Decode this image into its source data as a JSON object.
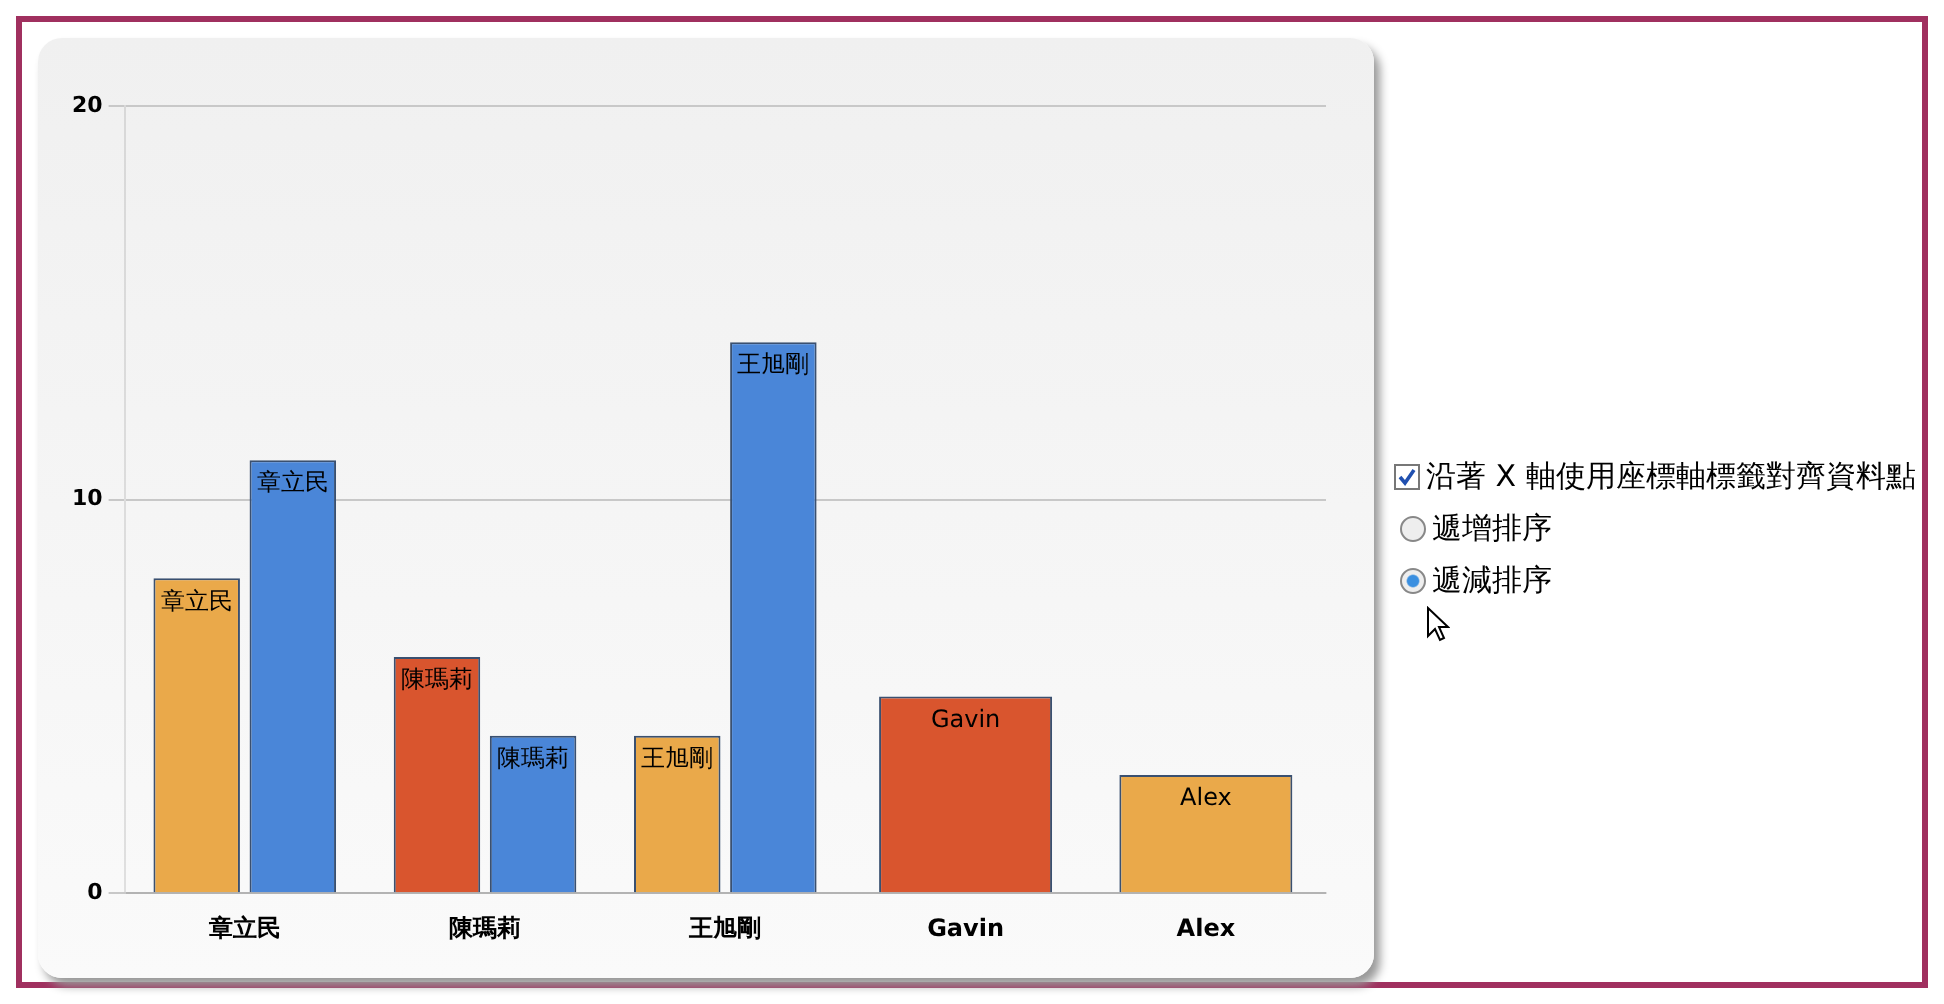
{
  "chart_data": {
    "type": "bar",
    "categories": [
      "章立民",
      "陳瑪莉",
      "王旭剛",
      "Gavin",
      "Alex"
    ],
    "series": [
      {
        "color": "#d9552e",
        "values": [
          null,
          6,
          null,
          5,
          null
        ],
        "value_labels": [
          null,
          "陳瑪莉",
          null,
          "Gavin",
          null
        ]
      },
      {
        "color": "#eaa94a",
        "values": [
          8,
          null,
          4,
          null,
          3
        ],
        "value_labels": [
          "章立民",
          null,
          "王旭剛",
          null,
          "Alex"
        ]
      },
      {
        "color": "#4a86d8",
        "values": [
          11,
          4,
          14,
          null,
          null
        ],
        "value_labels": [
          "章立民",
          "陳瑪莉",
          "王旭剛",
          null,
          null
        ]
      }
    ],
    "ylim": [
      0,
      20
    ],
    "yticks": [
      0,
      10,
      20
    ],
    "grid": "y",
    "legend": false,
    "annotations": [
      "沿著 X 軸使用座標軸標籤對齊資料點",
      "遞增排序",
      "遞減排序"
    ]
  }
}
